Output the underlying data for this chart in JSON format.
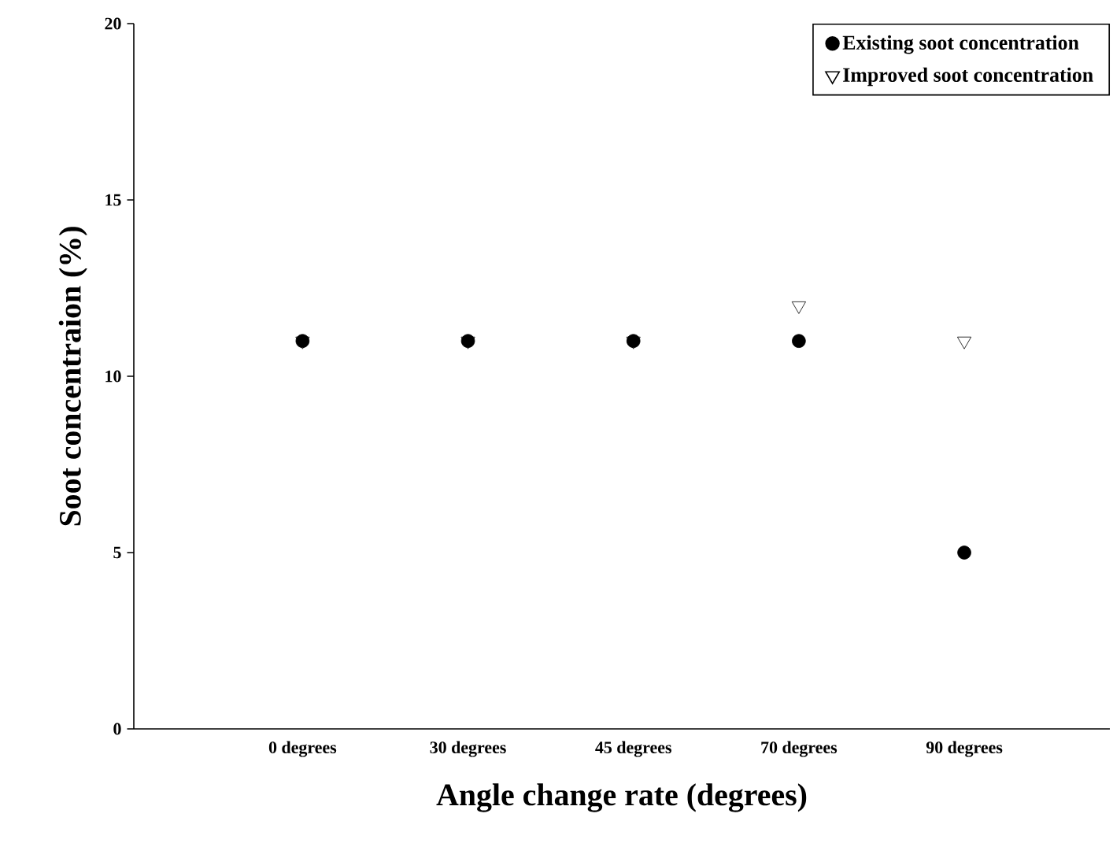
{
  "chart_data": {
    "type": "scatter",
    "xlabel": "Angle change rate (degrees)",
    "ylabel": "Soot concentraion (%)",
    "categories": [
      "0 degrees",
      "30 degrees",
      "45 degrees",
      "70 degrees",
      "90 degrees"
    ],
    "series": [
      {
        "name": "Existing soot concentration",
        "color": "#000000",
        "marker": "circle",
        "values": [
          11,
          11,
          11,
          11,
          5
        ]
      },
      {
        "name": "Improved soot concentration",
        "color": "#000000",
        "marker": "triangle",
        "values": [
          11,
          11,
          11,
          12,
          11
        ]
      }
    ],
    "ylim": [
      0,
      20
    ],
    "yticks": [
      0,
      5,
      10,
      15,
      20
    ],
    "legend": "top right",
    "grid": false
  }
}
